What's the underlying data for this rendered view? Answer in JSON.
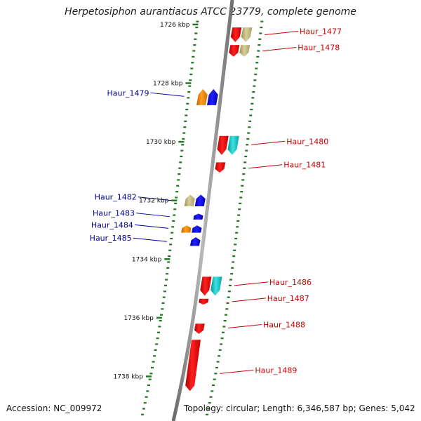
{
  "title": "Herpetosiphon aurantiacus ATCC 23779, complete genome",
  "footer": {
    "accession": "Accession: NC_009972",
    "topology": "Topology: circular; Length: 6,346,587 bp; Genes: 5,042"
  },
  "colors": {
    "red": "#ee0000",
    "blue": "#0000ee",
    "khaki": "#c8bf80",
    "cyan": "#10c8c8",
    "orange": "#f08c00",
    "tick_green": "#227722",
    "backbone": "#888888",
    "label_right": "#cc0000",
    "label_left": "#000099"
  },
  "scale_labels": [
    "1726 kbp",
    "1728 kbp",
    "1730 kbp",
    "1732 kbp",
    "1734 kbp",
    "1736 kbp",
    "1738 kbp"
  ],
  "genes": [
    {
      "id": "Haur_1477",
      "side": "right",
      "strand": "reverse",
      "track": "inner",
      "start_kbp": 1726.1,
      "end_kbp": 1726.6,
      "color": "red"
    },
    {
      "id": "Haur_1477b",
      "side": "right",
      "strand": "reverse",
      "track": "outer",
      "start_kbp": 1726.1,
      "end_kbp": 1726.6,
      "color": "khaki"
    },
    {
      "id": "Haur_1478",
      "side": "right",
      "strand": "reverse",
      "track": "inner",
      "start_kbp": 1726.7,
      "end_kbp": 1727.1,
      "color": "red"
    },
    {
      "id": "Haur_1478b",
      "side": "right",
      "strand": "reverse",
      "track": "outer",
      "start_kbp": 1726.7,
      "end_kbp": 1727.1,
      "color": "khaki"
    },
    {
      "id": "Haur_1479",
      "side": "left",
      "strand": "forward",
      "track": "outer",
      "start_kbp": 1728.2,
      "end_kbp": 1728.75,
      "color": "blue"
    },
    {
      "id": "Haur_1479b",
      "side": "left",
      "strand": "forward",
      "track": "inner",
      "start_kbp": 1728.2,
      "end_kbp": 1728.75,
      "color": "orange"
    },
    {
      "id": "Haur_1480",
      "side": "right",
      "strand": "reverse",
      "track": "inner",
      "start_kbp": 1729.8,
      "end_kbp": 1730.45,
      "color": "red"
    },
    {
      "id": "Haur_1480b",
      "side": "right",
      "strand": "reverse",
      "track": "outer",
      "start_kbp": 1729.8,
      "end_kbp": 1730.45,
      "color": "cyan"
    },
    {
      "id": "Haur_1481",
      "side": "right",
      "strand": "reverse",
      "track": "inner",
      "start_kbp": 1730.7,
      "end_kbp": 1731.05,
      "color": "red"
    },
    {
      "id": "Haur_1482",
      "side": "left",
      "strand": "forward",
      "track": "outer",
      "start_kbp": 1731.8,
      "end_kbp": 1732.2,
      "color": "blue"
    },
    {
      "id": "Haur_1482b",
      "side": "left",
      "strand": "forward",
      "track": "inner",
      "start_kbp": 1731.8,
      "end_kbp": 1732.2,
      "color": "khaki"
    },
    {
      "id": "Haur_1483",
      "side": "left",
      "strand": "forward",
      "track": "outer",
      "start_kbp": 1732.45,
      "end_kbp": 1732.65,
      "color": "blue"
    },
    {
      "id": "Haur_1484",
      "side": "left",
      "strand": "forward",
      "track": "outer",
      "start_kbp": 1732.85,
      "end_kbp": 1733.1,
      "color": "blue"
    },
    {
      "id": "Haur_1484b",
      "side": "left",
      "strand": "forward",
      "track": "inner",
      "start_kbp": 1732.85,
      "end_kbp": 1733.1,
      "color": "orange"
    },
    {
      "id": "Haur_1485",
      "side": "left",
      "strand": "forward",
      "track": "outer",
      "start_kbp": 1733.25,
      "end_kbp": 1733.55,
      "color": "blue"
    },
    {
      "id": "Haur_1486",
      "side": "right",
      "strand": "reverse",
      "track": "inner",
      "start_kbp": 1734.6,
      "end_kbp": 1735.25,
      "color": "red"
    },
    {
      "id": "Haur_1486b",
      "side": "right",
      "strand": "reverse",
      "track": "outer",
      "start_kbp": 1734.6,
      "end_kbp": 1735.25,
      "color": "cyan"
    },
    {
      "id": "Haur_1487",
      "side": "right",
      "strand": "reverse",
      "track": "inner",
      "start_kbp": 1735.35,
      "end_kbp": 1735.55,
      "color": "red"
    },
    {
      "id": "Haur_1488",
      "side": "right",
      "strand": "reverse",
      "track": "inner",
      "start_kbp": 1736.2,
      "end_kbp": 1736.55,
      "color": "red"
    },
    {
      "id": "Haur_1489",
      "side": "right",
      "strand": "reverse",
      "track": "inner",
      "start_kbp": 1736.75,
      "end_kbp": 1738.5,
      "color": "red"
    }
  ],
  "gene_labels": [
    {
      "text": "Haur_1477",
      "side": "right",
      "kbp": 1726.35
    },
    {
      "text": "Haur_1478",
      "side": "right",
      "kbp": 1726.9
    },
    {
      "text": "Haur_1479",
      "side": "left",
      "kbp": 1728.45
    },
    {
      "text": "Haur_1480",
      "side": "right",
      "kbp": 1730.1
    },
    {
      "text": "Haur_1481",
      "side": "right",
      "kbp": 1730.9
    },
    {
      "text": "Haur_1482",
      "side": "left",
      "kbp": 1732.0
    },
    {
      "text": "Haur_1483",
      "side": "left",
      "kbp": 1732.55
    },
    {
      "text": "Haur_1484",
      "side": "left",
      "kbp": 1732.95
    },
    {
      "text": "Haur_1485",
      "side": "left",
      "kbp": 1733.4
    },
    {
      "text": "Haur_1486",
      "side": "right",
      "kbp": 1734.9
    },
    {
      "text": "Haur_1487",
      "side": "right",
      "kbp": 1735.45
    },
    {
      "text": "Haur_1488",
      "side": "right",
      "kbp": 1736.35
    },
    {
      "text": "Haur_1489",
      "side": "right",
      "kbp": 1737.9
    }
  ]
}
